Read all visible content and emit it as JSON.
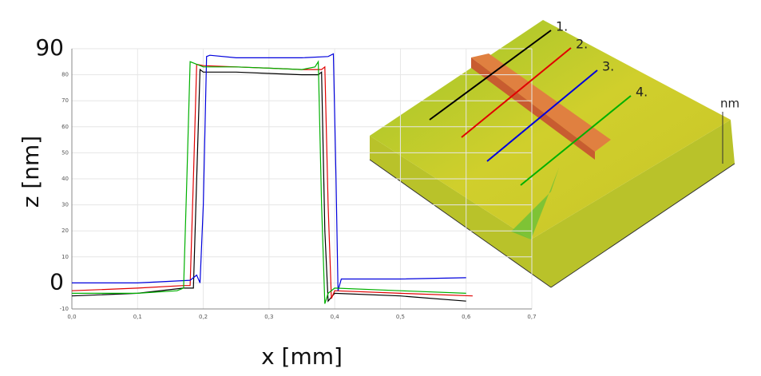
{
  "chart_data": {
    "type": "line",
    "y_label": "z [nm]",
    "x_label": "x [mm]",
    "xlim": [
      0,
      0.7
    ],
    "ylim": [
      -10,
      90
    ],
    "xticks": [
      {
        "value": 0,
        "label": "0,0"
      },
      {
        "value": 0.1,
        "label": "0,1"
      },
      {
        "value": 0.2,
        "label": "0,2"
      },
      {
        "value": 0.3,
        "label": "0,3"
      },
      {
        "value": 0.4,
        "label": "0,4"
      },
      {
        "value": 0.5,
        "label": "0,5"
      },
      {
        "value": 0.6,
        "label": "0,6"
      },
      {
        "value": 0.7,
        "label": "0,7"
      }
    ],
    "yticks": [
      -10,
      0,
      10,
      20,
      30,
      40,
      50,
      60,
      70,
      80,
      90
    ],
    "emphasized_yticks": [
      0,
      90
    ],
    "grid": true,
    "surface_labels": [
      "1.",
      "2.",
      "3.",
      "4.",
      "nm"
    ],
    "series": [
      {
        "color": "#000000",
        "x": [
          0,
          0.1,
          0.17,
          0.185,
          0.19,
          0.195,
          0.2,
          0.25,
          0.3,
          0.35,
          0.375,
          0.38,
          0.385,
          0.39,
          0.4,
          0.5,
          0.6
        ],
        "values": [
          -5,
          -4,
          -2,
          -2,
          40,
          82,
          81,
          81,
          80.5,
          80,
          80,
          81,
          20,
          -7,
          -4,
          -5,
          -7
        ]
      },
      {
        "color": "#e00000",
        "x": [
          0,
          0.1,
          0.17,
          0.18,
          0.185,
          0.19,
          0.2,
          0.25,
          0.3,
          0.35,
          0.38,
          0.385,
          0.39,
          0.395,
          0.4,
          0.5,
          0.61
        ],
        "values": [
          -3,
          -2,
          -1,
          -1,
          40,
          84,
          83.5,
          83,
          82.5,
          82,
          82,
          83,
          30,
          -6,
          -3,
          -4,
          -5
        ]
      },
      {
        "color": "#0000dd",
        "x": [
          0,
          0.1,
          0.18,
          0.19,
          0.195,
          0.2,
          0.205,
          0.21,
          0.25,
          0.3,
          0.35,
          0.39,
          0.398,
          0.402,
          0.405,
          0.41,
          0.5,
          0.6
        ],
        "values": [
          0,
          0,
          1,
          3,
          0,
          30,
          87,
          87.5,
          86.5,
          86.5,
          86.5,
          87,
          88,
          40,
          -3,
          1.5,
          1.5,
          2
        ]
      },
      {
        "color": "#00b000",
        "x": [
          0,
          0.1,
          0.16,
          0.17,
          0.175,
          0.18,
          0.2,
          0.25,
          0.3,
          0.35,
          0.37,
          0.375,
          0.38,
          0.385,
          0.39,
          0.4,
          0.5,
          0.6
        ],
        "values": [
          -4,
          -4,
          -3,
          -2,
          40,
          85,
          83,
          83,
          82.5,
          82,
          83,
          85,
          30,
          -8,
          -4,
          -2,
          -3,
          -4
        ]
      }
    ]
  }
}
